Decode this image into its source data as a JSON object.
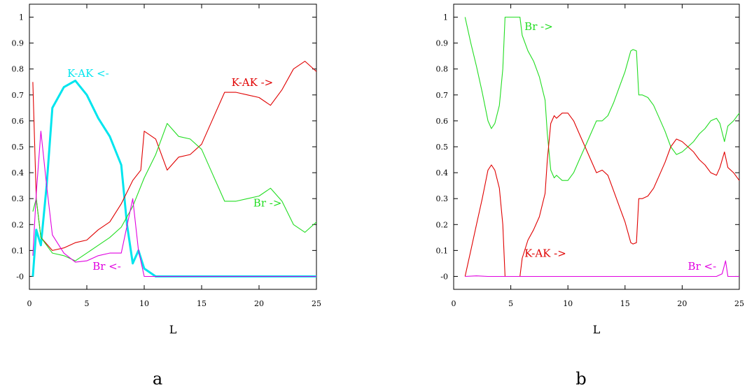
{
  "chart_data": [
    {
      "type": "line",
      "panel_label": "a",
      "xlabel": "L",
      "ylabel": "",
      "xlim": [
        0,
        25
      ],
      "ylim": [
        -0.05,
        1.05
      ],
      "x_ticks": [
        0,
        5,
        10,
        15,
        20,
        25
      ],
      "x_tick_labels": [
        "0",
        "5",
        "10",
        "15",
        "20",
        "25"
      ],
      "y_ticks": [
        0,
        0.1,
        0.2,
        0.3,
        0.4,
        0.5,
        0.6,
        0.7,
        0.8,
        0.9,
        1
      ],
      "y_tick_labels": [
        "-0",
        "0.1",
        "0.2",
        "0.3",
        "0.4",
        "0.5",
        "0.6",
        "0.7",
        "0.8",
        "0.9",
        "1"
      ],
      "grid": false,
      "series": [
        {
          "name": "K-AK <-",
          "color": "#00e5ee",
          "thick": true,
          "x": [
            0.3,
            0.6,
            1,
            1.5,
            2,
            3,
            4,
            5,
            6,
            7,
            8,
            8.5,
            9,
            9.5,
            10,
            11,
            12,
            15,
            20,
            25
          ],
          "y": [
            0,
            0.18,
            0.12,
            0.35,
            0.65,
            0.73,
            0.755,
            0.7,
            0.61,
            0.54,
            0.43,
            0.2,
            0.05,
            0.1,
            0.03,
            0,
            0,
            0,
            0,
            0
          ]
        },
        {
          "name": "K-AK ->",
          "color": "#e00000",
          "thick": false,
          "x": [
            0.3,
            0.6,
            1,
            2,
            3,
            4,
            5,
            6,
            7,
            8,
            9,
            9.7,
            10,
            11,
            12,
            13,
            14,
            15,
            16,
            17,
            18,
            19,
            20,
            21,
            22,
            23,
            24,
            25
          ],
          "y": [
            0.75,
            0.3,
            0.15,
            0.1,
            0.11,
            0.13,
            0.14,
            0.18,
            0.21,
            0.28,
            0.37,
            0.41,
            0.56,
            0.53,
            0.41,
            0.46,
            0.47,
            0.51,
            0.61,
            0.71,
            0.71,
            0.7,
            0.69,
            0.66,
            0.72,
            0.8,
            0.83,
            0.79
          ]
        },
        {
          "name": "Br ->",
          "color": "#22dd22",
          "thick": false,
          "x": [
            0.3,
            0.6,
            1,
            2,
            3,
            4,
            5,
            6,
            7,
            8,
            9,
            10,
            11,
            12,
            13,
            14,
            15,
            16,
            17,
            18,
            19,
            20,
            21,
            22,
            23,
            24,
            25
          ],
          "y": [
            0.25,
            0.3,
            0.15,
            0.09,
            0.08,
            0.06,
            0.09,
            0.12,
            0.15,
            0.19,
            0.27,
            0.38,
            0.47,
            0.59,
            0.54,
            0.53,
            0.49,
            0.39,
            0.29,
            0.29,
            0.3,
            0.31,
            0.34,
            0.29,
            0.2,
            0.17,
            0.21
          ]
        },
        {
          "name": "Br <-",
          "color": "#e000e0",
          "thick": false,
          "x": [
            0.3,
            0.6,
            1,
            1.5,
            2,
            3,
            4,
            5,
            6,
            7,
            8,
            9,
            9.5,
            10,
            11,
            12,
            15,
            20,
            25
          ],
          "y": [
            0.08,
            0.32,
            0.56,
            0.35,
            0.16,
            0.09,
            0.055,
            0.06,
            0.08,
            0.09,
            0.09,
            0.3,
            0.1,
            0,
            0,
            0,
            0,
            0,
            0
          ]
        }
      ],
      "annotations": [
        {
          "text": "K-AK <-",
          "series": "K-AK <-",
          "x": 3.3,
          "y": 0.77
        },
        {
          "text": "K-AK ->",
          "series": "K-AK ->",
          "x": 17.6,
          "y": 0.735
        },
        {
          "text": "Br ->",
          "series": "Br ->",
          "x": 19.5,
          "y": 0.27
        },
        {
          "text": "Br <-",
          "series": "Br <-",
          "x": 5.5,
          "y": 0.025
        }
      ]
    },
    {
      "type": "line",
      "panel_label": "b",
      "xlabel": "L",
      "ylabel": "",
      "xlim": [
        0,
        25
      ],
      "ylim": [
        -0.05,
        1.05
      ],
      "x_ticks": [
        0,
        5,
        10,
        15,
        20,
        25
      ],
      "x_tick_labels": [
        "0",
        "5",
        "10",
        "15",
        "20",
        "25"
      ],
      "y_ticks": [
        0,
        0.1,
        0.2,
        0.3,
        0.4,
        0.5,
        0.6,
        0.7,
        0.8,
        0.9,
        1
      ],
      "y_tick_labels": [
        "-0",
        "0.1",
        "0.2",
        "0.3",
        "0.4",
        "0.5",
        "0.6",
        "0.7",
        "0.8",
        "0.9",
        "1"
      ],
      "grid": false,
      "series": [
        {
          "name": "Br ->",
          "color": "#22dd22",
          "thick": false,
          "x": [
            1,
            1.5,
            2,
            2.5,
            3,
            3.3,
            3.6,
            4,
            4.3,
            4.5,
            4.7,
            5.2,
            5.8,
            6,
            6.5,
            7,
            7.5,
            8,
            8.2,
            8.5,
            8.8,
            9,
            9.5,
            10,
            10.5,
            11,
            11.5,
            12,
            12.5,
            13,
            13.5,
            14,
            14.5,
            15,
            15.5,
            15.7,
            16,
            16.2,
            16.5,
            17,
            17.5,
            18,
            18.5,
            19,
            19.5,
            20,
            20.5,
            21,
            21.5,
            22,
            22.5,
            23,
            23.3,
            23.7,
            24,
            24.5,
            25
          ],
          "y": [
            1,
            0.9,
            0.81,
            0.71,
            0.6,
            0.57,
            0.59,
            0.66,
            0.8,
            1,
            1,
            1,
            1,
            0.93,
            0.87,
            0.83,
            0.77,
            0.68,
            0.55,
            0.41,
            0.38,
            0.39,
            0.37,
            0.37,
            0.4,
            0.45,
            0.5,
            0.55,
            0.6,
            0.6,
            0.62,
            0.67,
            0.73,
            0.79,
            0.87,
            0.875,
            0.87,
            0.7,
            0.7,
            0.69,
            0.66,
            0.61,
            0.56,
            0.5,
            0.47,
            0.48,
            0.5,
            0.52,
            0.55,
            0.57,
            0.6,
            0.61,
            0.59,
            0.52,
            0.58,
            0.6,
            0.63
          ]
        },
        {
          "name": "K-AK ->",
          "color": "#e00000",
          "thick": false,
          "x": [
            1,
            1.5,
            2,
            2.5,
            3,
            3.3,
            3.6,
            4,
            4.3,
            4.5,
            4.7,
            5.2,
            5.8,
            6,
            6.5,
            7,
            7.5,
            8,
            8.2,
            8.5,
            8.8,
            9,
            9.5,
            10,
            10.5,
            11,
            11.5,
            12,
            12.5,
            13,
            13.5,
            14,
            14.5,
            15,
            15.5,
            15.7,
            16,
            16.2,
            16.5,
            17,
            17.5,
            18,
            18.5,
            19,
            19.5,
            20,
            20.5,
            21,
            21.5,
            22,
            22.5,
            23,
            23.3,
            23.7,
            24,
            24.5,
            25
          ],
          "y": [
            0,
            0.1,
            0.2,
            0.3,
            0.41,
            0.43,
            0.41,
            0.34,
            0.2,
            0,
            0,
            0,
            0,
            0.07,
            0.14,
            0.18,
            0.23,
            0.32,
            0.45,
            0.59,
            0.62,
            0.61,
            0.63,
            0.63,
            0.6,
            0.55,
            0.5,
            0.45,
            0.4,
            0.41,
            0.39,
            0.33,
            0.27,
            0.21,
            0.13,
            0.125,
            0.13,
            0.3,
            0.3,
            0.31,
            0.34,
            0.39,
            0.44,
            0.5,
            0.53,
            0.52,
            0.5,
            0.48,
            0.45,
            0.43,
            0.4,
            0.39,
            0.42,
            0.48,
            0.42,
            0.4,
            0.37
          ]
        },
        {
          "name": "Br <-",
          "color": "#e000e0",
          "thick": false,
          "x": [
            1,
            2,
            3,
            5,
            10,
            15,
            20,
            23,
            23.5,
            23.8,
            24,
            25
          ],
          "y": [
            0,
            0.002,
            0,
            0,
            0,
            0,
            0,
            0,
            0.01,
            0.06,
            0,
            0
          ]
        }
      ],
      "annotations": [
        {
          "text": "Br ->",
          "series": "Br ->",
          "x": 6.2,
          "y": 0.95
        },
        {
          "text": "K-AK ->",
          "series": "K-AK ->",
          "x": 6.2,
          "y": 0.075
        },
        {
          "text": "Br <-",
          "series": "Br <-",
          "x": 20.5,
          "y": 0.025
        }
      ]
    }
  ]
}
